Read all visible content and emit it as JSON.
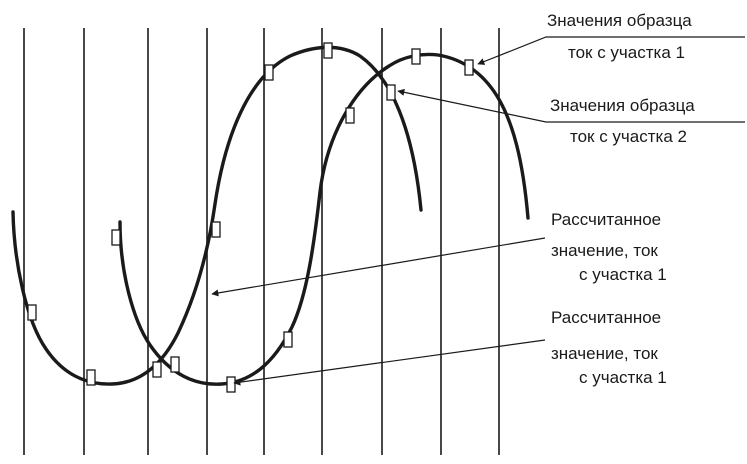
{
  "annotations": [
    {
      "line1": "Значения образца",
      "line2": "ток с участка 1"
    },
    {
      "line1": "Значения образца",
      "line2": "ток с участка 2"
    },
    {
      "line1": "Рассчитанное",
      "line2": "значение, ток",
      "line3": "с участка 1"
    },
    {
      "line1": "Рассчитанное",
      "line2": "значение, ток",
      "line3": "с участка 1"
    }
  ],
  "colors": {
    "ink": "#1a1a1a",
    "background": "#ffffff"
  }
}
